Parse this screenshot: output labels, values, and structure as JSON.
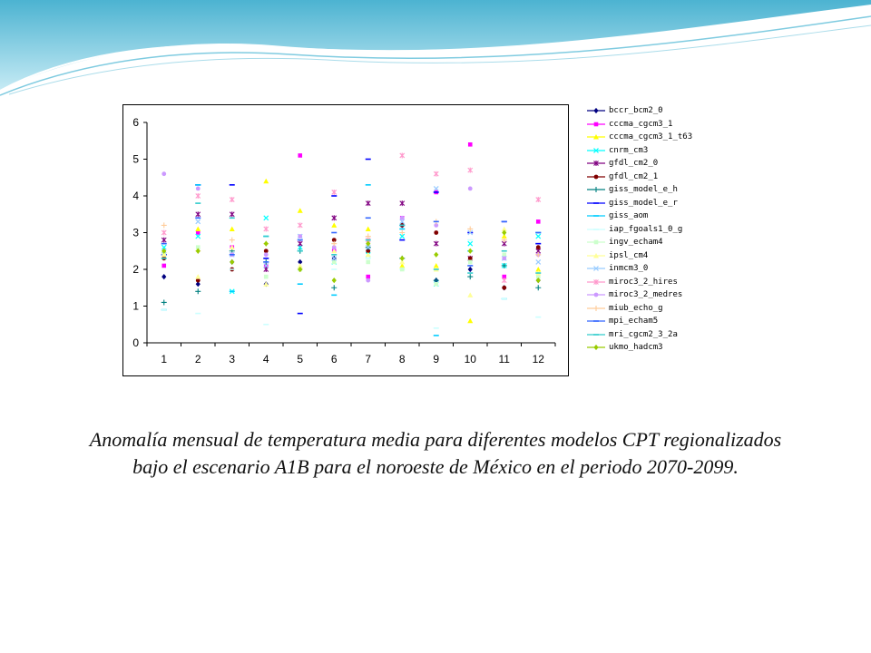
{
  "caption": {
    "line1": "Anomalía mensual de temperatura media para diferentes modelos CPT regionalizados",
    "line2": "bajo el escenario A1B para el noroeste de México en el periodo 2070-2099."
  },
  "colors": {
    "wave_dark": "#3aa6c6",
    "wave_light": "#bfe6f2"
  },
  "chart_data": {
    "type": "scatter",
    "categories": [
      "1",
      "2",
      "3",
      "4",
      "5",
      "6",
      "7",
      "8",
      "9",
      "10",
      "11",
      "12"
    ],
    "x": [
      1,
      2,
      3,
      4,
      5,
      6,
      7,
      8,
      9,
      10,
      11,
      12
    ],
    "ylim": [
      0,
      6
    ],
    "yticks": [
      "0",
      "1",
      "2",
      "3",
      "4",
      "5",
      "6"
    ],
    "grid": false,
    "legend_position": "right",
    "series": [
      {
        "name": "bccr_bcm2_0",
        "color": "#000080",
        "marker": "diamond",
        "values": [
          1.8,
          1.6,
          2.2,
          1.6,
          2.2,
          2.3,
          2.5,
          3.2,
          1.7,
          2.0,
          1.5,
          1.7
        ]
      },
      {
        "name": "cccma_cgcm3_1",
        "color": "#ff00ff",
        "marker": "square",
        "values": [
          2.1,
          3.0,
          2.6,
          2.1,
          5.1,
          2.5,
          1.8,
          3.4,
          4.1,
          5.4,
          1.8,
          3.3
        ]
      },
      {
        "name": "cccma_cgcm3_1_t63",
        "color": "#ffff00",
        "marker": "triangle",
        "values": [
          2.5,
          3.1,
          3.1,
          4.4,
          3.6,
          3.2,
          3.1,
          2.1,
          2.1,
          0.6,
          2.9,
          2.0
        ]
      },
      {
        "name": "cnrm_cm3",
        "color": "#00ffff",
        "marker": "x",
        "values": [
          2.6,
          2.9,
          1.4,
          3.4,
          2.6,
          2.2,
          2.4,
          2.9,
          1.6,
          2.7,
          2.1,
          2.9
        ]
      },
      {
        "name": "gfdl_cm2_0",
        "color": "#800080",
        "marker": "star",
        "values": [
          2.8,
          3.5,
          3.5,
          2.0,
          2.7,
          3.4,
          3.8,
          3.8,
          2.7,
          2.3,
          2.7,
          2.5
        ]
      },
      {
        "name": "gfdl_cm2_1",
        "color": "#800000",
        "marker": "circle",
        "values": [
          2.3,
          1.7,
          2.0,
          2.5,
          2.0,
          2.8,
          2.5,
          3.2,
          3.0,
          2.3,
          1.5,
          2.6
        ]
      },
      {
        "name": "giss_model_e_h",
        "color": "#008080",
        "marker": "plus",
        "values": [
          1.1,
          1.4,
          2.5,
          2.2,
          2.5,
          1.5,
          2.6,
          2.3,
          1.7,
          1.8,
          2.1,
          1.5
        ]
      },
      {
        "name": "giss_model_e_r",
        "color": "#0000ff",
        "marker": "dash",
        "values": [
          2.4,
          4.3,
          4.3,
          2.3,
          0.8,
          4.0,
          5.0,
          2.8,
          4.1,
          3.0,
          3.3,
          2.7
        ]
      },
      {
        "name": "giss_aom",
        "color": "#00ccff",
        "marker": "dash",
        "values": [
          0.9,
          4.3,
          1.4,
          2.9,
          1.6,
          1.3,
          4.3,
          3.1,
          0.2,
          2.5,
          1.2,
          3.0
        ]
      },
      {
        "name": "iap_fgoals1_0_g",
        "color": "#ccffff",
        "marker": "dash",
        "values": [
          0.9,
          0.8,
          2.0,
          0.5,
          2.0,
          2.0,
          2.3,
          2.0,
          0.4,
          2.8,
          1.2,
          0.7
        ]
      },
      {
        "name": "ingv_echam4",
        "color": "#ccffcc",
        "marker": "square",
        "values": [
          2.4,
          2.6,
          2.4,
          1.8,
          2.0,
          2.2,
          2.2,
          2.0,
          1.6,
          2.2,
          2.4,
          1.8
        ]
      },
      {
        "name": "ipsl_cm4",
        "color": "#ffff99",
        "marker": "triangle",
        "values": [
          2.4,
          1.8,
          2.6,
          1.6,
          2.1,
          2.5,
          2.4,
          2.2,
          2.0,
          1.3,
          3.1,
          1.9
        ]
      },
      {
        "name": "inmcm3_0",
        "color": "#99ccff",
        "marker": "x",
        "values": [
          2.5,
          3.3,
          2.4,
          2.1,
          2.9,
          2.3,
          2.6,
          3.3,
          4.2,
          3.0,
          2.3,
          2.2
        ]
      },
      {
        "name": "miroc3_2_hires",
        "color": "#ff99cc",
        "marker": "star",
        "values": [
          3.0,
          4.0,
          3.9,
          3.1,
          3.2,
          4.1,
          2.8,
          5.1,
          4.6,
          4.7,
          1.7,
          3.9
        ]
      },
      {
        "name": "miroc3_2_medres",
        "color": "#cc99ff",
        "marker": "circle",
        "values": [
          4.6,
          4.2,
          2.4,
          2.4,
          2.9,
          2.6,
          1.7,
          3.4,
          3.2,
          4.2,
          2.3,
          2.4
        ]
      },
      {
        "name": "miub_echo_g",
        "color": "#ffcc99",
        "marker": "plus",
        "values": [
          3.2,
          2.5,
          2.8,
          2.7,
          2.0,
          2.7,
          2.9,
          3.0,
          3.3,
          3.1,
          2.8,
          2.4
        ]
      },
      {
        "name": "mpi_echam5",
        "color": "#3366ff",
        "marker": "dash",
        "values": [
          2.7,
          3.4,
          2.4,
          2.2,
          2.8,
          3.0,
          3.4,
          3.2,
          3.3,
          2.1,
          3.3,
          3.0
        ]
      },
      {
        "name": "mri_cgcm2_3_2a",
        "color": "#33cccc",
        "marker": "dash",
        "values": [
          2.3,
          3.8,
          3.4,
          2.9,
          2.5,
          2.4,
          2.8,
          3.2,
          2.0,
          1.9,
          2.5,
          1.9
        ]
      },
      {
        "name": "ukmo_hadcm3",
        "color": "#99cc00",
        "marker": "diamond",
        "values": [
          2.5,
          2.5,
          2.2,
          2.7,
          2.0,
          1.7,
          2.7,
          2.3,
          2.4,
          2.5,
          3.0,
          1.7
        ]
      }
    ]
  }
}
